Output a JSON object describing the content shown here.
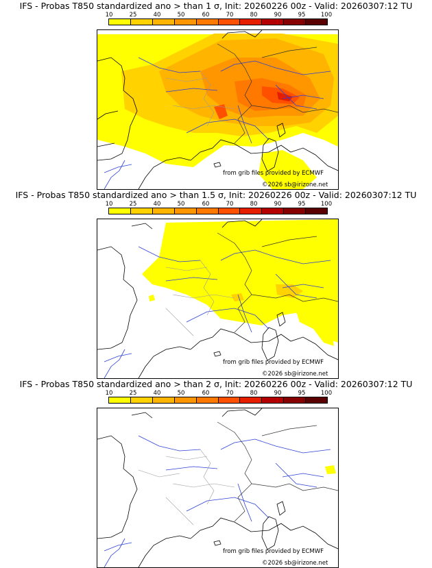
{
  "scale": {
    "ticks": [
      "10",
      "25",
      "40",
      "50",
      "60",
      "70",
      "80",
      "90",
      "95",
      "100"
    ],
    "colors": [
      "#ffff00",
      "#ffd200",
      "#ffb400",
      "#ff9600",
      "#ff7800",
      "#ff5000",
      "#e61e00",
      "#b40000",
      "#870000",
      "#5a0000"
    ]
  },
  "panels": [
    {
      "title": "IFS - Probas T850  standardized ano > than 1 σ, Init: 20260226 00z - Valid: 20260307:12 TU",
      "threshold": "1 σ",
      "credit_source": "from grib files provided by ECMWF",
      "credit_copyright": "©2026 sb@irizone.net"
    },
    {
      "title": "IFS - Probas T850  standardized ano > than 1.5 σ, Init: 20260226 00z - Valid: 20260307:12 TU",
      "threshold": "1.5 σ",
      "credit_source": "from grib files provided by ECMWF",
      "credit_copyright": "©2026 sb@irizone.net"
    },
    {
      "title": "IFS - Probas T850  standardized ano > than 2 σ, Init: 20260226 00z - Valid: 20260307:12 TU",
      "threshold": "2 σ",
      "credit_source": "from grib files provided by ECMWF",
      "credit_copyright": "©2026 sb@irizone.net"
    }
  ]
}
